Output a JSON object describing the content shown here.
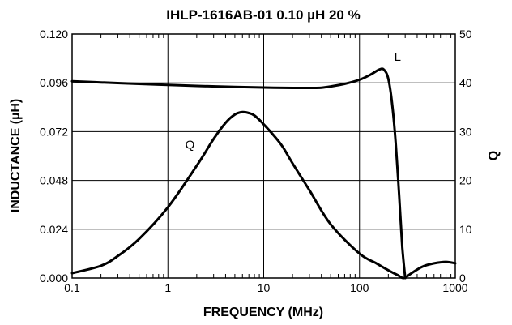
{
  "chart_data": {
    "type": "line",
    "title": "IHLP-1616AB-01   0.10 µH   20 %",
    "xlabel": "FREQUENCY (MHz)",
    "ylabel_left": "INDUCTANCE (µH)",
    "ylabel_right": "Q",
    "x_scale": "log",
    "xlim": [
      0.1,
      1000
    ],
    "ylim_left": [
      0,
      0.12
    ],
    "ylim_right": [
      0,
      50
    ],
    "grid": true,
    "x_ticks": [
      0.1,
      1,
      10,
      100,
      1000
    ],
    "x_tick_labels": [
      "0.1",
      "1",
      "10",
      "100",
      "1000"
    ],
    "y_left_ticks": [
      0,
      0.024,
      0.048,
      0.072,
      0.096,
      0.12
    ],
    "y_left_tick_labels": [
      "0.000",
      "0.024",
      "0.048",
      "0.072",
      "0.096",
      "0.120"
    ],
    "y_right_ticks": [
      0,
      10,
      20,
      30,
      40,
      50
    ],
    "y_right_tick_labels": [
      "0",
      "10",
      "20",
      "30",
      "40",
      "50"
    ],
    "series": [
      {
        "name": "L",
        "axis": "left",
        "x": [
          0.1,
          0.2,
          0.5,
          1,
          2,
          5,
          10,
          20,
          30,
          40,
          50,
          70,
          100,
          130,
          160,
          180,
          200,
          220,
          240,
          260,
          280,
          300
        ],
        "y": [
          0.0968,
          0.0962,
          0.0955,
          0.095,
          0.0945,
          0.094,
          0.0937,
          0.0935,
          0.0935,
          0.0936,
          0.0942,
          0.0955,
          0.0975,
          0.1,
          0.1025,
          0.1025,
          0.098,
          0.085,
          0.065,
          0.04,
          0.015,
          0.0
        ]
      },
      {
        "name": "Q",
        "axis": "right",
        "x": [
          0.1,
          0.2,
          0.3,
          0.5,
          1,
          2,
          3,
          4,
          5,
          6,
          7,
          8,
          10,
          15,
          20,
          30,
          50,
          100,
          150,
          200,
          250,
          290,
          350,
          450,
          600,
          800,
          1000
        ],
        "y": [
          1.0,
          2.5,
          4.5,
          8.0,
          14.5,
          23.0,
          28.5,
          31.8,
          33.5,
          34.0,
          33.8,
          33.3,
          31.5,
          27.5,
          23.5,
          18.0,
          11.0,
          5.0,
          3.0,
          1.6,
          0.6,
          0.0,
          1.0,
          2.3,
          3.0,
          3.3,
          3.0
        ]
      }
    ],
    "annotations": [
      {
        "text": "L",
        "x": 250,
        "y_right": 44.5
      },
      {
        "text": "Q",
        "x": 1.7,
        "y_right": 26.5
      }
    ]
  }
}
